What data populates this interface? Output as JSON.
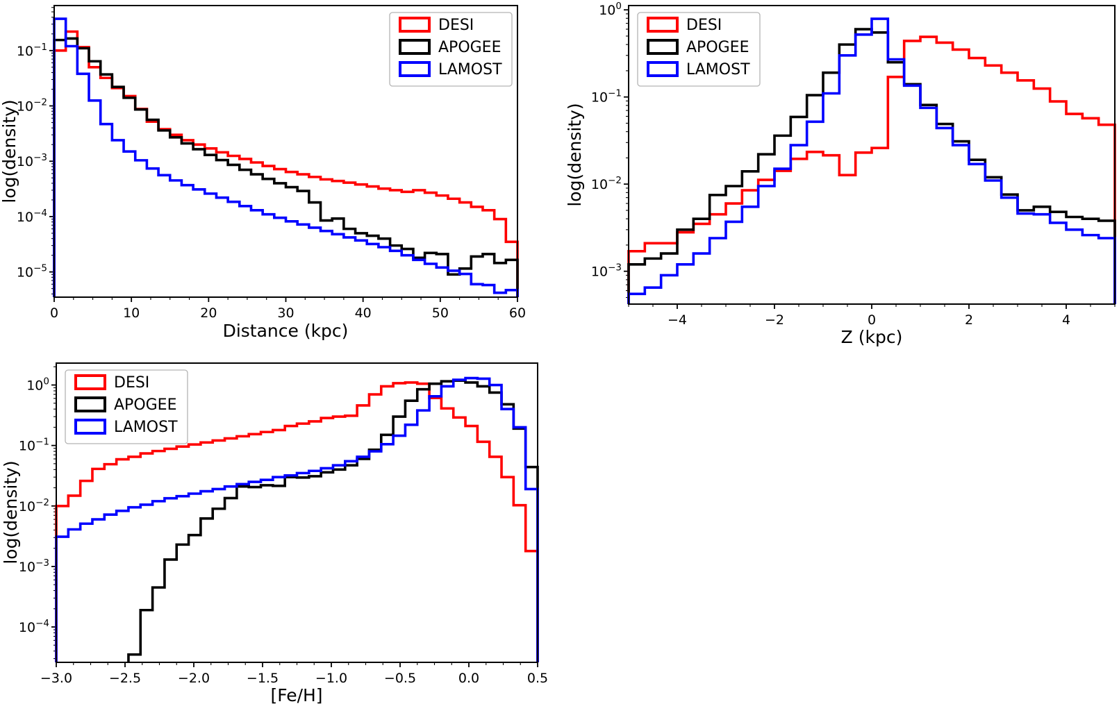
{
  "figure": {
    "background": "#ffffff",
    "accent_colors": {
      "desi": "#ff0000",
      "apogee": "#000000",
      "lamost": "#0000ff"
    }
  },
  "legend": {
    "entries": [
      {
        "label": "DESI",
        "color": "#ff0000"
      },
      {
        "label": "APOGEE",
        "color": "#000000"
      },
      {
        "label": "LAMOST",
        "color": "#0000ff"
      }
    ]
  },
  "chart_data": [
    {
      "type": "histogram-step",
      "title": "",
      "xlabel": "Distance (kpc)",
      "ylabel": "log(density)",
      "yscale": "log",
      "xlim": [
        0,
        60
      ],
      "ylim": [
        3.5e-06,
        0.65
      ],
      "bins": 40,
      "bin_width": 1.5,
      "xticks": [
        0,
        10,
        20,
        30,
        40,
        50,
        60
      ],
      "xtick_format": "int",
      "x_minor_step": 2.5,
      "ytick_exponents": [
        -5,
        -4,
        -3,
        -2,
        -1
      ],
      "grid": false,
      "legend_position": "upper-right",
      "series": [
        {
          "name": "DESI",
          "color": "#ff0000",
          "values": [
            0.1,
            0.22,
            0.115,
            0.05,
            0.032,
            0.021,
            0.015,
            0.0088,
            0.0052,
            0.0038,
            0.003,
            0.0024,
            0.002,
            0.0017,
            0.00145,
            0.00125,
            0.0011,
            0.00095,
            0.00082,
            0.00072,
            0.00064,
            0.00058,
            0.00052,
            0.00047,
            0.00044,
            0.00041,
            0.00038,
            0.00035,
            0.00032,
            0.0003,
            0.00028,
            0.0003,
            0.00027,
            0.00024,
            0.00021,
            0.00018,
            0.00015,
            0.00013,
            9e-05,
            3.5e-05
          ]
        },
        {
          "name": "APOGEE",
          "color": "#000000",
          "values": [
            0.155,
            0.165,
            0.11,
            0.064,
            0.037,
            0.022,
            0.014,
            0.0086,
            0.0056,
            0.0036,
            0.0027,
            0.0021,
            0.00165,
            0.0013,
            0.00105,
            0.00086,
            0.0007,
            0.00058,
            0.00048,
            0.0004,
            0.00034,
            0.00029,
            0.00018,
            8.5e-05,
            9.2e-05,
            6e-05,
            5e-05,
            4.5e-05,
            4e-05,
            3e-05,
            2.6e-05,
            1.8e-05,
            2.2e-05,
            2.1e-05,
            9e-06,
            1.15e-05,
            1.9e-05,
            2.1e-05,
            1.45e-05,
            1.65e-05
          ]
        },
        {
          "name": "LAMOST",
          "color": "#0000ff",
          "values": [
            0.375,
            0.12,
            0.038,
            0.0125,
            0.0047,
            0.0024,
            0.0015,
            0.00104,
            0.00074,
            0.00056,
            0.00045,
            0.00037,
            0.00031,
            0.00026,
            0.00022,
            0.000185,
            0.000155,
            0.00013,
            0.00011,
            9.5e-05,
            8.2e-05,
            7.2e-05,
            6.3e-05,
            5.5e-05,
            4.8e-05,
            4.2e-05,
            3.7e-05,
            3.2e-05,
            2.8e-05,
            2.4e-05,
            2e-05,
            1.65e-05,
            1.4e-05,
            1.2e-05,
            1.05e-05,
            9.2e-06,
            6e-06,
            5.8e-06,
            4.2e-06,
            4.7e-06
          ]
        }
      ]
    },
    {
      "type": "histogram-step",
      "title": "",
      "xlabel": "Z (kpc)",
      "ylabel": "log(density)",
      "yscale": "log",
      "xlim": [
        -5,
        5
      ],
      "ylim": [
        0.00042,
        1.12
      ],
      "bins": 30,
      "bin_width": 0.3333,
      "xticks": [
        -4,
        -2,
        0,
        2,
        4
      ],
      "xtick_format": "int",
      "x_minor_step": 0.5,
      "ytick_exponents": [
        -3,
        -2,
        -1,
        0
      ],
      "grid": false,
      "legend_position": "upper-left",
      "series": [
        {
          "name": "DESI",
          "color": "#ff0000",
          "values": [
            0.0017,
            0.0021,
            0.0021,
            0.0028,
            0.0035,
            0.0045,
            0.006,
            0.0085,
            0.0112,
            0.0142,
            0.0195,
            0.0234,
            0.0214,
            0.0127,
            0.023,
            0.026,
            0.17,
            0.44,
            0.49,
            0.42,
            0.35,
            0.28,
            0.23,
            0.19,
            0.155,
            0.125,
            0.089,
            0.064,
            0.057,
            0.048
          ]
        },
        {
          "name": "APOGEE",
          "color": "#000000",
          "values": [
            0.0012,
            0.0014,
            0.0016,
            0.003,
            0.004,
            0.0075,
            0.0095,
            0.014,
            0.022,
            0.036,
            0.059,
            0.105,
            0.19,
            0.4,
            0.6,
            0.55,
            0.25,
            0.14,
            0.081,
            0.049,
            0.031,
            0.019,
            0.012,
            0.0076,
            0.005,
            0.0055,
            0.0048,
            0.0042,
            0.004,
            0.0038
          ]
        },
        {
          "name": "LAMOST",
          "color": "#0000ff",
          "values": [
            0.00055,
            0.00065,
            0.0009,
            0.0012,
            0.0016,
            0.0024,
            0.0037,
            0.0055,
            0.0095,
            0.015,
            0.028,
            0.052,
            0.11,
            0.3,
            0.52,
            0.79,
            0.27,
            0.135,
            0.075,
            0.044,
            0.028,
            0.017,
            0.011,
            0.007,
            0.0046,
            0.0045,
            0.0036,
            0.003,
            0.0026,
            0.0024
          ]
        }
      ]
    },
    {
      "type": "histogram-step",
      "title": "",
      "xlabel": "[Fe/H]",
      "ylabel": "log(density)",
      "yscale": "log",
      "xlim": [
        -3.0,
        0.5
      ],
      "ylim": [
        2.6e-05,
        2.3
      ],
      "bins": 40,
      "bin_width": 0.0875,
      "xticks": [
        -3.0,
        -2.5,
        -2.0,
        -1.5,
        -1.0,
        -0.5,
        0.0,
        0.5
      ],
      "xtick_format": "dec1",
      "x_minor_step": 0.125,
      "ytick_exponents": [
        -4,
        -3,
        -2,
        -1,
        0
      ],
      "grid": false,
      "legend_position": "upper-left",
      "series": [
        {
          "name": "DESI",
          "color": "#ff0000",
          "values": [
            0.01,
            0.0148,
            0.026,
            0.041,
            0.049,
            0.059,
            0.065,
            0.074,
            0.081,
            0.088,
            0.096,
            0.104,
            0.112,
            0.121,
            0.131,
            0.142,
            0.154,
            0.167,
            0.18,
            0.21,
            0.23,
            0.25,
            0.285,
            0.3,
            0.31,
            0.46,
            0.7,
            0.95,
            1.07,
            1.1,
            1.05,
            0.61,
            0.41,
            0.29,
            0.21,
            0.115,
            0.065,
            0.03,
            0.0103,
            0.0018
          ]
        },
        {
          "name": "APOGEE",
          "color": "#000000",
          "values": [
            null,
            null,
            null,
            null,
            null,
            null,
            3.5e-05,
            0.00019,
            0.00045,
            0.0013,
            0.0023,
            0.0033,
            0.0062,
            0.009,
            0.0135,
            0.021,
            0.0205,
            0.022,
            0.0215,
            0.03,
            0.0295,
            0.031,
            0.036,
            0.04,
            0.047,
            0.06,
            0.085,
            0.15,
            0.3,
            0.55,
            0.85,
            1.05,
            1.15,
            1.18,
            1.1,
            0.95,
            0.75,
            0.48,
            0.19,
            0.044
          ]
        },
        {
          "name": "LAMOST",
          "color": "#0000ff",
          "values": [
            0.0031,
            0.0041,
            0.0051,
            0.006,
            0.0072,
            0.0083,
            0.0095,
            0.0105,
            0.012,
            0.0134,
            0.0145,
            0.016,
            0.0175,
            0.019,
            0.021,
            0.023,
            0.025,
            0.027,
            0.03,
            0.032,
            0.035,
            0.038,
            0.042,
            0.047,
            0.055,
            0.065,
            0.08,
            0.105,
            0.145,
            0.22,
            0.38,
            0.65,
            0.95,
            1.22,
            1.3,
            1.27,
            1.0,
            0.4,
            0.2,
            0.019
          ]
        }
      ]
    }
  ]
}
